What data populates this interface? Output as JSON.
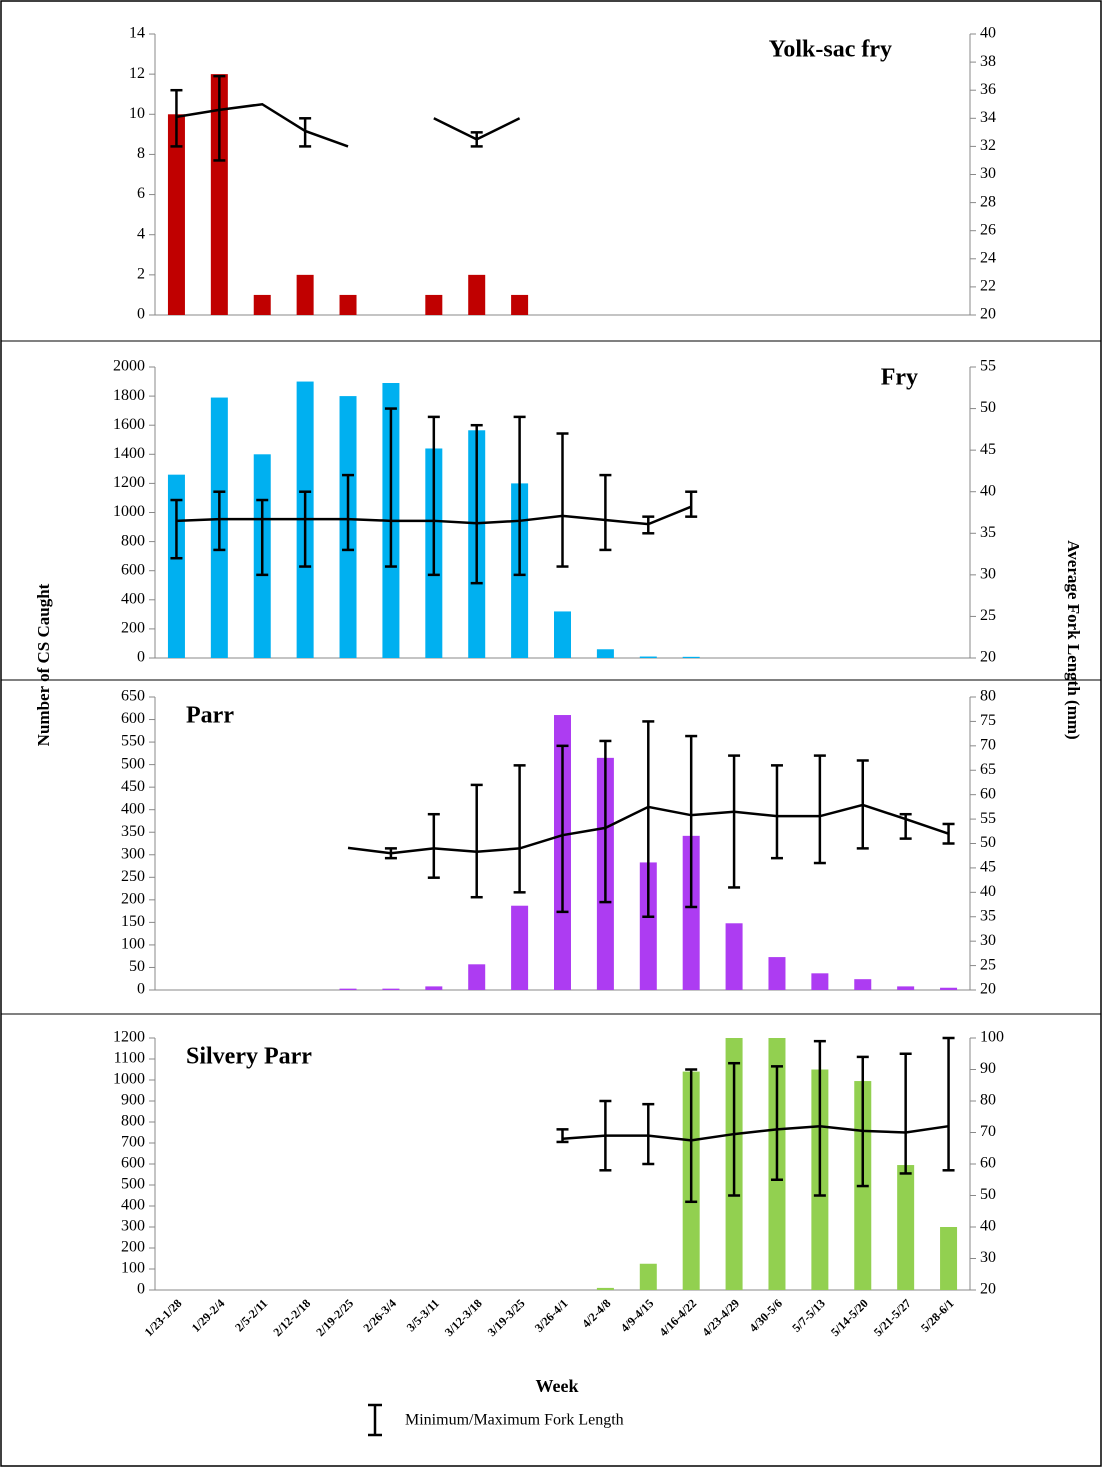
{
  "categories": [
    "1/23-1/28",
    "1/29-2/4",
    "2/5-2/11",
    "2/12-2/18",
    "2/19-2/25",
    "2/26-3/4",
    "3/5-3/11",
    "3/12-3/18",
    "3/19-3/25",
    "3/26-4/1",
    "4/2-4/8",
    "4/9-4/15",
    "4/16-4/22",
    "4/23-4/29",
    "4/30-5/6",
    "5/7-5/13",
    "5/14-5/20",
    "5/21-5/27",
    "5/28-6/1"
  ],
  "xlabel": "Week",
  "ylabel": "Number of CS Caught",
  "y2label": "Average Fork Length (mm)",
  "error_legend": "Minimum/Maximum Fork Length",
  "chart_data": [
    {
      "type": "bar",
      "title": "Yolk-sac fry",
      "title_corner": "top-right",
      "ylim": [
        0,
        14
      ],
      "yticks": [
        0,
        2,
        4,
        6,
        8,
        10,
        12,
        14
      ],
      "y2lim": [
        20,
        40
      ],
      "y2ticks": [
        20,
        22,
        24,
        26,
        28,
        30,
        32,
        34,
        36,
        38,
        40
      ],
      "series": [
        {
          "color": "#c00000",
          "values": [
            10,
            12,
            1,
            2,
            1,
            null,
            1,
            2,
            1,
            null,
            null,
            null,
            null,
            null,
            null,
            null,
            null,
            null,
            null
          ]
        },
        {
          "type": "line",
          "axis": "y2",
          "color": "#000000",
          "values": [
            34.1,
            34.6,
            35,
            33.1,
            32,
            null,
            34,
            32.5,
            34,
            null,
            null,
            null,
            null,
            null,
            null,
            null,
            null,
            null,
            null
          ],
          "low": [
            32,
            31,
            null,
            32,
            null,
            null,
            null,
            32,
            null,
            null,
            null,
            null,
            null,
            null,
            null,
            null,
            null,
            null,
            null
          ],
          "high": [
            36,
            37,
            null,
            34,
            null,
            null,
            null,
            33,
            null,
            null,
            null,
            null,
            null,
            null,
            null,
            null,
            null,
            null,
            null
          ]
        }
      ]
    },
    {
      "type": "bar",
      "title": "Fry",
      "title_corner": "top-right",
      "ylim": [
        0,
        2000
      ],
      "yticks": [
        0,
        200,
        400,
        600,
        800,
        1000,
        1200,
        1400,
        1600,
        1800,
        2000
      ],
      "y2lim": [
        20,
        55
      ],
      "y2ticks": [
        20,
        25,
        30,
        35,
        40,
        45,
        50,
        55
      ],
      "series": [
        {
          "color": "#00b0f0",
          "values": [
            1260,
            1790,
            1400,
            1900,
            1800,
            1890,
            1440,
            1565,
            1200,
            320,
            60,
            10,
            8,
            null,
            null,
            null,
            null,
            null,
            null
          ]
        },
        {
          "type": "line",
          "axis": "y2",
          "color": "#000000",
          "values": [
            36.5,
            36.7,
            36.7,
            36.7,
            36.7,
            36.5,
            36.5,
            36.2,
            36.5,
            37.1,
            36.6,
            36.1,
            38.2,
            null,
            null,
            null,
            null,
            null,
            null
          ],
          "low": [
            32,
            33,
            30,
            31,
            33,
            31,
            30,
            29,
            30,
            31,
            33,
            35,
            37,
            null,
            null,
            null,
            null,
            null,
            null
          ],
          "high": [
            39,
            40,
            39,
            40,
            42,
            50,
            49,
            48,
            49,
            47,
            42,
            37,
            40,
            null,
            null,
            null,
            null,
            null,
            null
          ]
        }
      ]
    },
    {
      "type": "bar",
      "title": "Parr",
      "title_corner": "top-left",
      "ylim": [
        0,
        650
      ],
      "yticks": [
        0,
        50,
        100,
        150,
        200,
        250,
        300,
        350,
        400,
        450,
        500,
        550,
        600,
        650
      ],
      "y2lim": [
        20,
        80
      ],
      "y2ticks": [
        20,
        25,
        30,
        35,
        40,
        45,
        50,
        55,
        60,
        65,
        70,
        75,
        80
      ],
      "series": [
        {
          "color": "#ad3cf2",
          "values": [
            null,
            null,
            null,
            null,
            3,
            3,
            8,
            57,
            187,
            610,
            515,
            283,
            342,
            148,
            73,
            37,
            24,
            8,
            5
          ]
        },
        {
          "type": "line",
          "axis": "y2",
          "color": "#000000",
          "values": [
            null,
            null,
            null,
            null,
            49.1,
            48,
            49,
            48.3,
            49,
            51.7,
            53.2,
            57.5,
            55.8,
            56.5,
            55.6,
            55.6,
            57.9,
            55,
            52
          ],
          "low": [
            null,
            null,
            null,
            null,
            null,
            47,
            43,
            39,
            40,
            36,
            38,
            35,
            37,
            41,
            47,
            46,
            49,
            51,
            50
          ],
          "high": [
            null,
            null,
            null,
            null,
            null,
            49,
            56,
            62,
            66,
            70,
            71,
            75,
            72,
            68,
            66,
            68,
            67,
            56,
            54
          ]
        }
      ]
    },
    {
      "type": "bar",
      "title": "Silvery Parr",
      "title_corner": "top-left",
      "ylim": [
        0,
        1200
      ],
      "yticks": [
        0,
        100,
        200,
        300,
        400,
        500,
        600,
        700,
        800,
        900,
        1000,
        1100,
        1200
      ],
      "y2lim": [
        20,
        100
      ],
      "y2ticks": [
        20,
        30,
        40,
        50,
        60,
        70,
        80,
        90,
        100
      ],
      "series": [
        {
          "color": "#92d050",
          "values": [
            null,
            null,
            null,
            null,
            null,
            null,
            null,
            null,
            null,
            null,
            10,
            125,
            1040,
            1200,
            1200,
            1050,
            995,
            595,
            300
          ]
        },
        {
          "type": "line",
          "axis": "y2",
          "color": "#000000",
          "values": [
            null,
            null,
            null,
            null,
            null,
            null,
            null,
            null,
            null,
            68,
            69,
            69,
            67.5,
            69.5,
            71,
            72,
            70.5,
            70,
            72
          ],
          "low": [
            null,
            null,
            null,
            null,
            null,
            null,
            null,
            null,
            null,
            67,
            58,
            60,
            48,
            50,
            55,
            50,
            53,
            57,
            58
          ],
          "high": [
            null,
            null,
            null,
            null,
            null,
            null,
            null,
            null,
            null,
            71,
            80,
            79,
            90,
            92,
            91,
            99,
            94,
            95,
            100
          ]
        }
      ]
    }
  ]
}
